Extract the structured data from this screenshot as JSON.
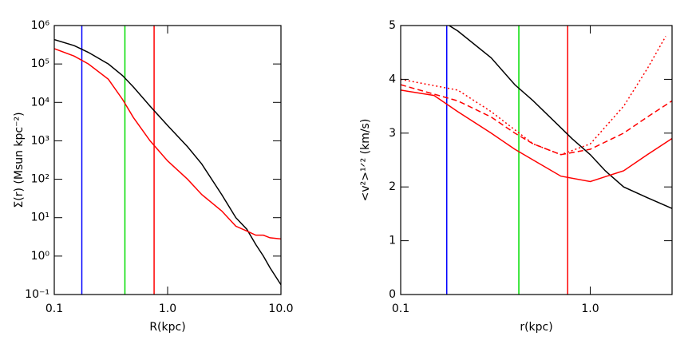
{
  "chart_data": [
    {
      "type": "line",
      "xlabel": "R(kpc)",
      "ylabel": "Σ(r) (Msun kpc⁻²)",
      "xlog": true,
      "ylog": true,
      "xlim": [
        0.1,
        10
      ],
      "ylim": [
        0.1,
        1000000
      ],
      "xticks": [
        0.1,
        {
          "value": 1,
          "label": "1.0"
        },
        {
          "value": 10,
          "label": "10.0"
        }
      ],
      "yticks": [
        {
          "value": 0.1,
          "label": "10⁻¹"
        },
        {
          "value": 1,
          "label": "10⁰"
        },
        {
          "value": 10,
          "label": "10¹"
        },
        {
          "value": 100,
          "label": "10²"
        },
        {
          "value": 1000,
          "label": "10³"
        },
        {
          "value": 10000,
          "label": "10⁴"
        },
        {
          "value": 100000,
          "label": "10⁵"
        },
        {
          "value": 1000000,
          "label": "10⁶"
        }
      ],
      "vlines": [
        {
          "x": 0.175,
          "color": "#0000ff"
        },
        {
          "x": 0.42,
          "color": "#00dd00"
        },
        {
          "x": 0.76,
          "color": "#ff0000"
        }
      ],
      "series": [
        {
          "color": "#000000",
          "dash": "solid",
          "x": [
            0.1,
            0.15,
            0.2,
            0.3,
            0.4,
            0.5,
            0.7,
            1,
            1.5,
            2,
            3,
            4,
            5,
            6,
            7,
            8,
            10
          ],
          "values": [
            430000,
            300000,
            200000,
            100000,
            50000,
            25000,
            8000,
            2500,
            700,
            250,
            40,
            10,
            5,
            2,
            1,
            0.5,
            0.18
          ]
        },
        {
          "color": "#ff0000",
          "dash": "solid",
          "x": [
            0.1,
            0.15,
            0.2,
            0.3,
            0.4,
            0.5,
            0.7,
            1,
            1.5,
            2,
            3,
            4,
            5,
            6,
            7,
            8,
            10
          ],
          "values": [
            250000,
            160000,
            100000,
            40000,
            12000,
            4000,
            1000,
            300,
            100,
            40,
            15,
            6,
            4.5,
            3.5,
            3.5,
            3,
            2.8
          ]
        }
      ]
    },
    {
      "type": "line",
      "xlabel": "r(kpc)",
      "ylabel": "<v²>¹ᐟ² (km/s)",
      "xlog": true,
      "ylog": false,
      "xlim": [
        0.1,
        2.7
      ],
      "ylim": [
        0,
        5
      ],
      "xticks": [
        0.1,
        {
          "value": 1,
          "label": "1.0"
        }
      ],
      "yticks": [
        0,
        1,
        2,
        3,
        4,
        5
      ],
      "vlines": [
        {
          "x": 0.175,
          "color": "#0000ff"
        },
        {
          "x": 0.42,
          "color": "#00dd00"
        },
        {
          "x": 0.76,
          "color": "#ff0000"
        }
      ],
      "series": [
        {
          "color": "#000000",
          "dash": "solid",
          "x": [
            0.18,
            0.2,
            0.3,
            0.4,
            0.5,
            0.7,
            0.8,
            1,
            1.2,
            1.5,
            2,
            2.7
          ],
          "values": [
            5,
            4.9,
            4.4,
            3.9,
            3.6,
            3.1,
            2.9,
            2.6,
            2.3,
            2,
            1.8,
            1.6
          ]
        },
        {
          "color": "#ff0000",
          "dash": "solid",
          "x": [
            0.1,
            0.15,
            0.2,
            0.3,
            0.4,
            0.5,
            0.7,
            1,
            1.5,
            2,
            2.7
          ],
          "values": [
            3.8,
            3.7,
            3.4,
            3,
            2.7,
            2.5,
            2.2,
            2.1,
            2.3,
            2.6,
            2.9
          ]
        },
        {
          "color": "#ff0000",
          "dash": "dashed",
          "x": [
            0.1,
            0.2,
            0.3,
            0.4,
            0.5,
            0.7,
            1,
            1.5,
            2,
            2.7
          ],
          "values": [
            3.9,
            3.6,
            3.3,
            3,
            2.8,
            2.6,
            2.7,
            3,
            3.3,
            3.6
          ]
        },
        {
          "color": "#ff0000",
          "dash": "dotted",
          "x": [
            0.1,
            0.2,
            0.3,
            0.5,
            0.7,
            1,
            1.5,
            2,
            2.5
          ],
          "values": [
            4,
            3.8,
            3.4,
            2.8,
            2.6,
            2.8,
            3.5,
            4.2,
            4.8
          ]
        }
      ]
    }
  ]
}
